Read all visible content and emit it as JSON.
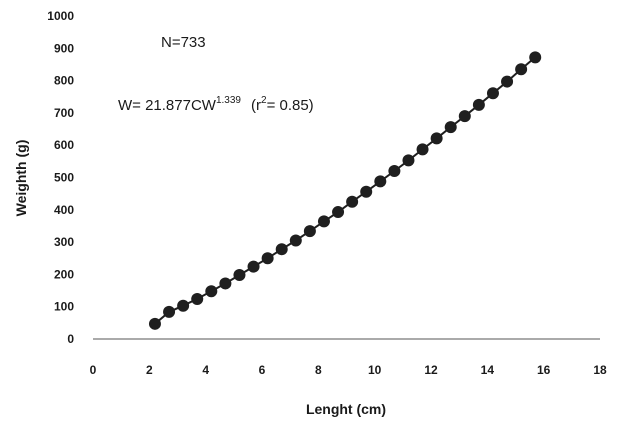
{
  "chart_data": {
    "type": "scatter",
    "title": "",
    "xlabel": "Lenght (cm)",
    "ylabel": "Weighth (g)",
    "xlim": [
      0,
      18
    ],
    "ylim": [
      0,
      1000
    ],
    "xticks": [
      "0",
      "2",
      "4",
      "6",
      "8",
      "10",
      "12",
      "14",
      "16",
      "18"
    ],
    "yticks": [
      "0",
      "100",
      "200",
      "300",
      "400",
      "500",
      "600",
      "700",
      "800",
      "900",
      "1000"
    ],
    "grid": false,
    "legend": "none",
    "annotations": {
      "n": "N=733",
      "equation_main": "W= 21.877CW",
      "equation_exponent": "1.339",
      "equation_r_open": "(r",
      "equation_r_sup": "2",
      "equation_r_close": "= 0.85)"
    },
    "colors": {
      "points": "#1f1f1f",
      "line": "#1f1f1f",
      "axis": "#555555"
    },
    "series": [
      {
        "x": [
          2.2,
          2.7,
          3.2,
          3.7,
          4.2,
          4.7,
          5.2,
          5.7,
          6.2,
          6.7,
          7.2,
          7.7,
          8.2,
          8.7,
          9.2,
          9.7,
          10.2,
          10.7,
          11.2,
          11.7,
          12.2,
          12.7,
          13.2,
          13.7,
          14.2,
          14.7,
          15.2,
          15.7
        ],
        "y": [
          47,
          84,
          103,
          124,
          148,
          172,
          198,
          224,
          250,
          278,
          305,
          334,
          364,
          393,
          425,
          456,
          488,
          520,
          553,
          587,
          621,
          656,
          690,
          725,
          761,
          797,
          835,
          872
        ]
      }
    ]
  }
}
